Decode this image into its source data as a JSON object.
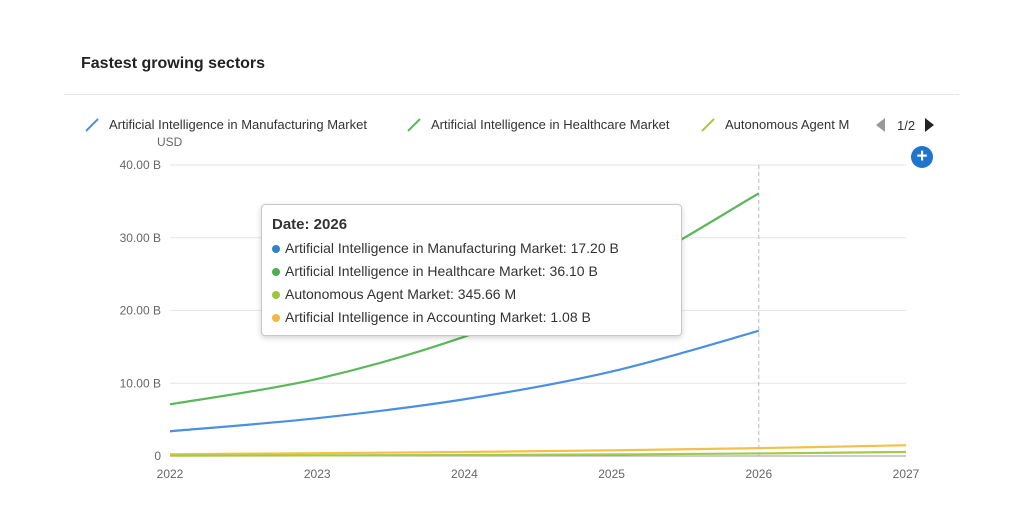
{
  "header": {
    "title": "Fastest growing sectors"
  },
  "legend": {
    "items": [
      {
        "label": "Artificial Intelligence in Manufacturing Market",
        "color": "#4a90e2"
      },
      {
        "label": "Artificial Intelligence in Healthcare Market",
        "color": "#5cb85c"
      },
      {
        "label": "Autonomous Agent M",
        "color": "#a3c94a"
      }
    ],
    "page": "1/2"
  },
  "unit_label": "USD",
  "tooltip": {
    "title": "Date: 2026",
    "rows": [
      {
        "text": "Artificial Intelligence in Manufacturing Market: 17.20 B",
        "color": "#2f80d1"
      },
      {
        "text": "Artificial Intelligence in Healthcare Market: 36.10 B",
        "color": "#4cae4f"
      },
      {
        "text": "Autonomous Agent Market: 345.66 M",
        "color": "#9bc53d"
      },
      {
        "text": "Artificial Intelligence in Accounting Market: 1.08 B",
        "color": "#f5b642"
      }
    ]
  },
  "chart_data": {
    "type": "line",
    "x": [
      2022,
      2023,
      2024,
      2025,
      2026,
      2027
    ],
    "x_tick_labels": [
      "2022",
      "2023",
      "2024",
      "2025",
      "2026",
      "2027"
    ],
    "y_tick_labels": [
      "0",
      "10.00 B",
      "20.00 B",
      "30.00 B",
      "40.00 B"
    ],
    "ylim": [
      0,
      40
    ],
    "y_unit": "B USD",
    "grid": true,
    "legend_position": "top",
    "highlight_x": 2026,
    "series": [
      {
        "name": "Artificial Intelligence in Manufacturing Market",
        "color": "#4a90e2",
        "x": [
          2022,
          2023,
          2024,
          2025,
          2026
        ],
        "values": [
          3.4,
          5.2,
          7.8,
          11.6,
          17.2
        ]
      },
      {
        "name": "Artificial Intelligence in Healthcare Market",
        "color": "#5cb85c",
        "x": [
          2022,
          2023,
          2024,
          2025,
          2026
        ],
        "values": [
          7.1,
          10.6,
          16.4,
          24.5,
          36.1
        ]
      },
      {
        "name": "Autonomous Agent Market",
        "color": "#a3c94a",
        "x": [
          2022,
          2023,
          2024,
          2025,
          2026,
          2027
        ],
        "values": [
          0.05,
          0.08,
          0.13,
          0.21,
          0.35,
          0.55
        ]
      },
      {
        "name": "Artificial Intelligence in Accounting Market",
        "color": "#f5c04a",
        "x": [
          2022,
          2023,
          2024,
          2025,
          2026,
          2027
        ],
        "values": [
          0.25,
          0.38,
          0.55,
          0.78,
          1.08,
          1.48
        ]
      }
    ]
  }
}
